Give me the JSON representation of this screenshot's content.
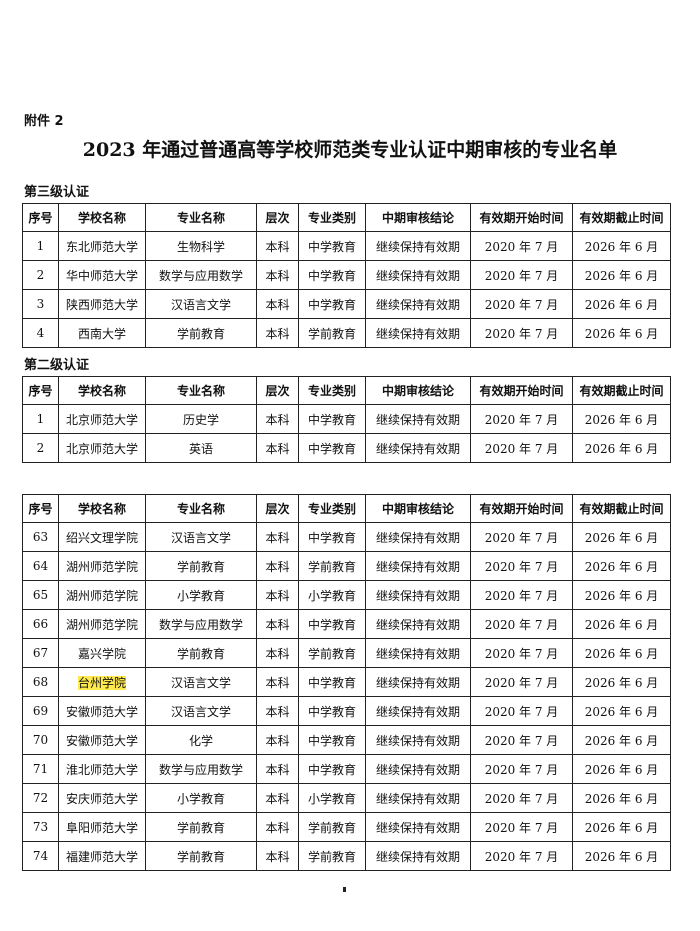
{
  "attachment_label": "附件 2",
  "title": "2023 年通过普通高等学校师范类专业认证中期审核的专业名单",
  "headers": [
    "序号",
    "学校名称",
    "专业名称",
    "层次",
    "专业类别",
    "中期审核结论",
    "有效期开始时间",
    "有效期截止时间"
  ],
  "sections": [
    {
      "label": "第三级认证",
      "rows": [
        [
          "1",
          "东北师范大学",
          "生物科学",
          "本科",
          "中学教育",
          "继续保持有效期",
          "2020 年 7 月",
          "2026 年 6 月"
        ],
        [
          "2",
          "华中师范大学",
          "数学与应用数学",
          "本科",
          "中学教育",
          "继续保持有效期",
          "2020 年 7 月",
          "2026 年 6 月"
        ],
        [
          "3",
          "陕西师范大学",
          "汉语言文学",
          "本科",
          "中学教育",
          "继续保持有效期",
          "2020 年 7 月",
          "2026 年 6 月"
        ],
        [
          "4",
          "西南大学",
          "学前教育",
          "本科",
          "学前教育",
          "继续保持有效期",
          "2020 年 7 月",
          "2026 年 6 月"
        ]
      ]
    },
    {
      "label": "第二级认证",
      "rows": [
        [
          "1",
          "北京师范大学",
          "历史学",
          "本科",
          "中学教育",
          "继续保持有效期",
          "2020 年 7 月",
          "2026 年 6 月"
        ],
        [
          "2",
          "北京师范大学",
          "英语",
          "本科",
          "中学教育",
          "继续保持有效期",
          "2020 年 7 月",
          "2026 年 6 月"
        ]
      ]
    },
    {
      "label": "",
      "rows": [
        [
          "63",
          "绍兴文理学院",
          "汉语言文学",
          "本科",
          "中学教育",
          "继续保持有效期",
          "2020 年 7 月",
          "2026 年 6 月"
        ],
        [
          "64",
          "湖州师范学院",
          "学前教育",
          "本科",
          "学前教育",
          "继续保持有效期",
          "2020 年 7 月",
          "2026 年 6 月"
        ],
        [
          "65",
          "湖州师范学院",
          "小学教育",
          "本科",
          "小学教育",
          "继续保持有效期",
          "2020 年 7 月",
          "2026 年 6 月"
        ],
        [
          "66",
          "湖州师范学院",
          "数学与应用数学",
          "本科",
          "中学教育",
          "继续保持有效期",
          "2020 年 7 月",
          "2026 年 6 月"
        ],
        [
          "67",
          "嘉兴学院",
          "学前教育",
          "本科",
          "学前教育",
          "继续保持有效期",
          "2020 年 7 月",
          "2026 年 6 月"
        ],
        [
          "68",
          "台州学院",
          "汉语言文学",
          "本科",
          "中学教育",
          "继续保持有效期",
          "2020 年 7 月",
          "2026 年 6 月"
        ],
        [
          "69",
          "安徽师范大学",
          "汉语言文学",
          "本科",
          "中学教育",
          "继续保持有效期",
          "2020 年 7 月",
          "2026 年 6 月"
        ],
        [
          "70",
          "安徽师范大学",
          "化学",
          "本科",
          "中学教育",
          "继续保持有效期",
          "2020 年 7 月",
          "2026 年 6 月"
        ],
        [
          "71",
          "淮北师范大学",
          "数学与应用数学",
          "本科",
          "中学教育",
          "继续保持有效期",
          "2020 年 7 月",
          "2026 年 6 月"
        ],
        [
          "72",
          "安庆师范大学",
          "小学教育",
          "本科",
          "小学教育",
          "继续保持有效期",
          "2020 年 7 月",
          "2026 年 6 月"
        ],
        [
          "73",
          "阜阳师范大学",
          "学前教育",
          "本科",
          "学前教育",
          "继续保持有效期",
          "2020 年 7 月",
          "2026 年 6 月"
        ],
        [
          "74",
          "福建师范大学",
          "学前教育",
          "本科",
          "学前教育",
          "继续保持有效期",
          "2020 年 7 月",
          "2026 年 6 月"
        ]
      ]
    }
  ],
  "highlighted": {
    "section": 2,
    "row": 5,
    "col": 1,
    "color": "#ffe94d"
  }
}
